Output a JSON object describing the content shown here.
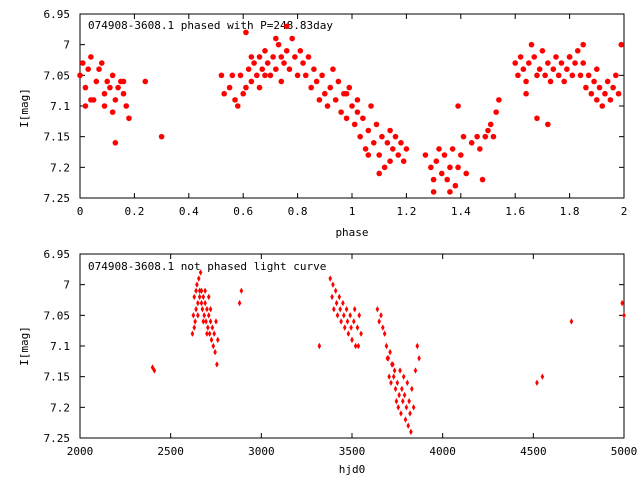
{
  "chart_data": [
    {
      "type": "scatter",
      "title": "074908-3608.1 phased with P=248.83day",
      "xlabel": "phase",
      "ylabel": "I[mag]",
      "xlim": [
        0,
        2
      ],
      "ylim": [
        6.95,
        7.25
      ],
      "y_inverted": true,
      "x_ticks": [
        0,
        0.2,
        0.4,
        0.6,
        0.8,
        1,
        1.2,
        1.4,
        1.6,
        1.8,
        2
      ],
      "x_tick_labels": [
        "0",
        "0.2",
        "0.4",
        "0.6",
        "0.8",
        "1",
        "1.2",
        "1.4",
        "1.6",
        "1.8",
        "2"
      ],
      "y_ticks": [
        6.95,
        7,
        7.05,
        7.1,
        7.15,
        7.2,
        7.25
      ],
      "y_tick_labels": [
        "6.95",
        "7",
        "7.05",
        "7.1",
        "7.15",
        "7.2",
        "7.25"
      ],
      "marker": "asterisk",
      "color": "#ff0000",
      "points": [
        [
          0.0,
          7.05
        ],
        [
          0.01,
          7.03
        ],
        [
          0.02,
          7.07
        ],
        [
          0.03,
          7.04
        ],
        [
          0.04,
          7.02
        ],
        [
          0.05,
          7.09
        ],
        [
          0.06,
          7.06
        ],
        [
          0.07,
          7.04
        ],
        [
          0.08,
          7.03
        ],
        [
          0.09,
          7.08
        ],
        [
          0.1,
          7.06
        ],
        [
          0.11,
          7.07
        ],
        [
          0.12,
          7.05
        ],
        [
          0.13,
          7.09
        ],
        [
          0.14,
          7.07
        ],
        [
          0.15,
          7.06
        ],
        [
          0.16,
          7.08
        ],
        [
          0.17,
          7.1
        ],
        [
          0.18,
          7.12
        ],
        [
          0.12,
          7.11
        ],
        [
          0.09,
          7.1
        ],
        [
          0.04,
          7.09
        ],
        [
          0.02,
          7.1
        ],
        [
          0.13,
          7.16
        ],
        [
          0.16,
          7.06
        ],
        [
          0.24,
          7.06
        ],
        [
          0.3,
          7.15
        ],
        [
          0.52,
          7.05
        ],
        [
          0.53,
          7.08
        ],
        [
          0.55,
          7.07
        ],
        [
          0.56,
          7.05
        ],
        [
          0.57,
          7.09
        ],
        [
          0.58,
          7.1
        ],
        [
          0.59,
          7.05
        ],
        [
          0.6,
          7.08
        ],
        [
          0.61,
          7.07
        ],
        [
          0.62,
          7.04
        ],
        [
          0.63,
          7.06
        ],
        [
          0.64,
          7.03
        ],
        [
          0.65,
          7.05
        ],
        [
          0.66,
          7.02
        ],
        [
          0.67,
          7.04
        ],
        [
          0.68,
          7.01
        ],
        [
          0.69,
          7.03
        ],
        [
          0.7,
          7.05
        ],
        [
          0.71,
          7.02
        ],
        [
          0.72,
          7.04
        ],
        [
          0.73,
          7.0
        ],
        [
          0.74,
          7.06
        ],
        [
          0.75,
          7.03
        ],
        [
          0.76,
          7.01
        ],
        [
          0.77,
          7.04
        ],
        [
          0.78,
          6.99
        ],
        [
          0.79,
          7.02
        ],
        [
          0.8,
          7.05
        ],
        [
          0.81,
          7.01
        ],
        [
          0.82,
          7.03
        ],
        [
          0.83,
          7.05
        ],
        [
          0.84,
          7.02
        ],
        [
          0.85,
          7.07
        ],
        [
          0.86,
          7.04
        ],
        [
          0.87,
          7.06
        ],
        [
          0.88,
          7.09
        ],
        [
          0.89,
          7.05
        ],
        [
          0.9,
          7.08
        ],
        [
          0.91,
          7.1
        ],
        [
          0.92,
          7.07
        ],
        [
          0.93,
          7.04
        ],
        [
          0.94,
          7.09
        ],
        [
          0.95,
          7.06
        ],
        [
          0.96,
          7.11
        ],
        [
          0.97,
          7.08
        ],
        [
          0.98,
          7.12
        ],
        [
          0.99,
          7.07
        ],
        [
          1.0,
          7.1
        ],
        [
          1.01,
          7.13
        ],
        [
          1.02,
          7.09
        ],
        [
          1.03,
          7.15
        ],
        [
          1.04,
          7.12
        ],
        [
          1.05,
          7.17
        ],
        [
          1.06,
          7.14
        ],
        [
          1.07,
          7.1
        ],
        [
          1.08,
          7.16
        ],
        [
          1.09,
          7.13
        ],
        [
          1.1,
          7.18
        ],
        [
          1.11,
          7.15
        ],
        [
          1.12,
          7.2
        ],
        [
          1.13,
          7.16
        ],
        [
          1.14,
          7.19
        ],
        [
          1.15,
          7.17
        ],
        [
          1.16,
          7.15
        ],
        [
          1.17,
          7.18
        ],
        [
          1.18,
          7.16
        ],
        [
          1.19,
          7.19
        ],
        [
          1.2,
          7.17
        ],
        [
          0.72,
          6.99
        ],
        [
          0.74,
          7.02
        ],
        [
          0.76,
          6.97
        ],
        [
          0.68,
          7.05
        ],
        [
          0.66,
          7.07
        ],
        [
          0.63,
          7.02
        ],
        [
          0.61,
          6.98
        ],
        [
          0.98,
          7.08
        ],
        [
          1.02,
          7.11
        ],
        [
          1.06,
          7.18
        ],
        [
          1.1,
          7.21
        ],
        [
          1.14,
          7.14
        ],
        [
          1.27,
          7.18
        ],
        [
          1.29,
          7.2
        ],
        [
          1.3,
          7.22
        ],
        [
          1.31,
          7.19
        ],
        [
          1.32,
          7.17
        ],
        [
          1.33,
          7.21
        ],
        [
          1.34,
          7.18
        ],
        [
          1.35,
          7.22
        ],
        [
          1.36,
          7.2
        ],
        [
          1.37,
          7.17
        ],
        [
          1.38,
          7.23
        ],
        [
          1.39,
          7.2
        ],
        [
          1.4,
          7.18
        ],
        [
          1.41,
          7.15
        ],
        [
          1.42,
          7.21
        ],
        [
          1.44,
          7.16
        ],
        [
          1.46,
          7.15
        ],
        [
          1.47,
          7.17
        ],
        [
          1.48,
          7.22
        ],
        [
          1.49,
          7.15
        ],
        [
          1.5,
          7.14
        ],
        [
          1.51,
          7.13
        ],
        [
          1.52,
          7.15
        ],
        [
          1.53,
          7.11
        ],
        [
          1.54,
          7.09
        ],
        [
          1.39,
          7.1
        ],
        [
          1.3,
          7.24
        ],
        [
          1.36,
          7.24
        ],
        [
          1.6,
          7.03
        ],
        [
          1.61,
          7.05
        ],
        [
          1.62,
          7.02
        ],
        [
          1.63,
          7.04
        ],
        [
          1.64,
          7.06
        ],
        [
          1.65,
          7.03
        ],
        [
          1.66,
          7.0
        ],
        [
          1.67,
          7.02
        ],
        [
          1.68,
          7.05
        ],
        [
          1.69,
          7.04
        ],
        [
          1.7,
          7.01
        ],
        [
          1.71,
          7.05
        ],
        [
          1.72,
          7.03
        ],
        [
          1.73,
          7.06
        ],
        [
          1.74,
          7.04
        ],
        [
          1.75,
          7.02
        ],
        [
          1.76,
          7.05
        ],
        [
          1.77,
          7.03
        ],
        [
          1.78,
          7.06
        ],
        [
          1.79,
          7.04
        ],
        [
          1.8,
          7.02
        ],
        [
          1.81,
          7.05
        ],
        [
          1.82,
          7.03
        ],
        [
          1.83,
          7.01
        ],
        [
          1.84,
          7.05
        ],
        [
          1.85,
          7.03
        ],
        [
          1.86,
          7.07
        ],
        [
          1.87,
          7.05
        ],
        [
          1.88,
          7.08
        ],
        [
          1.89,
          7.06
        ],
        [
          1.9,
          7.09
        ],
        [
          1.91,
          7.07
        ],
        [
          1.92,
          7.1
        ],
        [
          1.93,
          7.08
        ],
        [
          1.94,
          7.06
        ],
        [
          1.95,
          7.09
        ],
        [
          1.96,
          7.07
        ],
        [
          1.97,
          7.05
        ],
        [
          1.98,
          7.08
        ],
        [
          1.99,
          7.0
        ],
        [
          1.64,
          7.08
        ],
        [
          1.68,
          7.12
        ],
        [
          1.72,
          7.13
        ],
        [
          1.8,
          7.02
        ],
        [
          1.85,
          7.0
        ],
        [
          1.9,
          7.04
        ]
      ]
    },
    {
      "type": "scatter",
      "title": "074908-3608.1 not phased light curve",
      "xlabel": "hjd0",
      "ylabel": "I[mag]",
      "xlim": [
        2000,
        5000
      ],
      "ylim": [
        6.95,
        7.25
      ],
      "y_inverted": true,
      "x_ticks": [
        2000,
        2500,
        3000,
        3500,
        4000,
        4500,
        5000
      ],
      "x_tick_labels": [
        "2000",
        "2500",
        "3000",
        "3500",
        "4000",
        "4500",
        "5000"
      ],
      "y_ticks": [
        6.95,
        7,
        7.05,
        7.1,
        7.15,
        7.2,
        7.25
      ],
      "y_tick_labels": [
        "6.95",
        "7",
        "7.05",
        "7.1",
        "7.15",
        "7.2",
        "7.25"
      ],
      "marker": "diamond",
      "color": "#ff0000",
      "points": [
        [
          2410,
          7.14
        ],
        [
          2400,
          7.135
        ],
        [
          2620,
          7.08
        ],
        [
          2625,
          7.05
        ],
        [
          2630,
          7.02
        ],
        [
          2635,
          7.06
        ],
        [
          2640,
          7.04
        ],
        [
          2645,
          7.0
        ],
        [
          2650,
          7.03
        ],
        [
          2655,
          6.99
        ],
        [
          2660,
          7.02
        ],
        [
          2665,
          6.98
        ],
        [
          2670,
          7.01
        ],
        [
          2675,
          7.04
        ],
        [
          2680,
          7.02
        ],
        [
          2685,
          7.05
        ],
        [
          2690,
          7.03
        ],
        [
          2695,
          7.06
        ],
        [
          2700,
          7.04
        ],
        [
          2705,
          7.07
        ],
        [
          2710,
          7.05
        ],
        [
          2715,
          7.08
        ],
        [
          2720,
          7.06
        ],
        [
          2725,
          7.09
        ],
        [
          2730,
          7.07
        ],
        [
          2735,
          7.1
        ],
        [
          2740,
          7.08
        ],
        [
          2745,
          7.11
        ],
        [
          2750,
          7.06
        ],
        [
          2755,
          7.13
        ],
        [
          2760,
          7.09
        ],
        [
          2630,
          7.07
        ],
        [
          2640,
          7.01
        ],
        [
          2650,
          7.05
        ],
        [
          2660,
          7.01
        ],
        [
          2670,
          7.03
        ],
        [
          2680,
          7.06
        ],
        [
          2690,
          7.01
        ],
        [
          2700,
          7.08
        ],
        [
          2710,
          7.02
        ],
        [
          2720,
          7.04
        ],
        [
          2880,
          7.03
        ],
        [
          2890,
          7.01
        ],
        [
          3320,
          7.1
        ],
        [
          3380,
          6.99
        ],
        [
          3390,
          7.02
        ],
        [
          3400,
          7.04
        ],
        [
          3410,
          7.01
        ],
        [
          3420,
          7.05
        ],
        [
          3430,
          7.02
        ],
        [
          3440,
          7.06
        ],
        [
          3450,
          7.03
        ],
        [
          3460,
          7.07
        ],
        [
          3470,
          7.04
        ],
        [
          3480,
          7.08
        ],
        [
          3490,
          7.05
        ],
        [
          3500,
          7.09
        ],
        [
          3510,
          7.06
        ],
        [
          3520,
          7.1
        ],
        [
          3530,
          7.07
        ],
        [
          3540,
          7.05
        ],
        [
          3550,
          7.08
        ],
        [
          3395,
          7.0
        ],
        [
          3415,
          7.03
        ],
        [
          3435,
          7.04
        ],
        [
          3455,
          7.05
        ],
        [
          3475,
          7.06
        ],
        [
          3495,
          7.07
        ],
        [
          3515,
          7.04
        ],
        [
          3535,
          7.1
        ],
        [
          3640,
          7.04
        ],
        [
          3650,
          7.06
        ],
        [
          3660,
          7.05
        ],
        [
          3670,
          7.07
        ],
        [
          3680,
          7.08
        ],
        [
          3690,
          7.1
        ],
        [
          3700,
          7.12
        ],
        [
          3710,
          7.11
        ],
        [
          3720,
          7.13
        ],
        [
          3730,
          7.15
        ],
        [
          3740,
          7.17
        ],
        [
          3745,
          7.19
        ],
        [
          3750,
          7.16
        ],
        [
          3755,
          7.2
        ],
        [
          3760,
          7.18
        ],
        [
          3765,
          7.14
        ],
        [
          3770,
          7.21
        ],
        [
          3775,
          7.17
        ],
        [
          3780,
          7.19
        ],
        [
          3785,
          7.15
        ],
        [
          3790,
          7.18
        ],
        [
          3795,
          7.22
        ],
        [
          3800,
          7.2
        ],
        [
          3805,
          7.16
        ],
        [
          3810,
          7.23
        ],
        [
          3815,
          7.19
        ],
        [
          3820,
          7.21
        ],
        [
          3825,
          7.24
        ],
        [
          3830,
          7.17
        ],
        [
          3840,
          7.2
        ],
        [
          3850,
          7.14
        ],
        [
          3860,
          7.1
        ],
        [
          3870,
          7.12
        ],
        [
          3735,
          7.14
        ],
        [
          3725,
          7.13
        ],
        [
          3715,
          7.16
        ],
        [
          3705,
          7.15
        ],
        [
          3695,
          7.12
        ],
        [
          4520,
          7.16
        ],
        [
          4550,
          7.15
        ],
        [
          4710,
          7.06
        ],
        [
          4990,
          7.03
        ],
        [
          5000,
          7.05
        ]
      ]
    }
  ]
}
